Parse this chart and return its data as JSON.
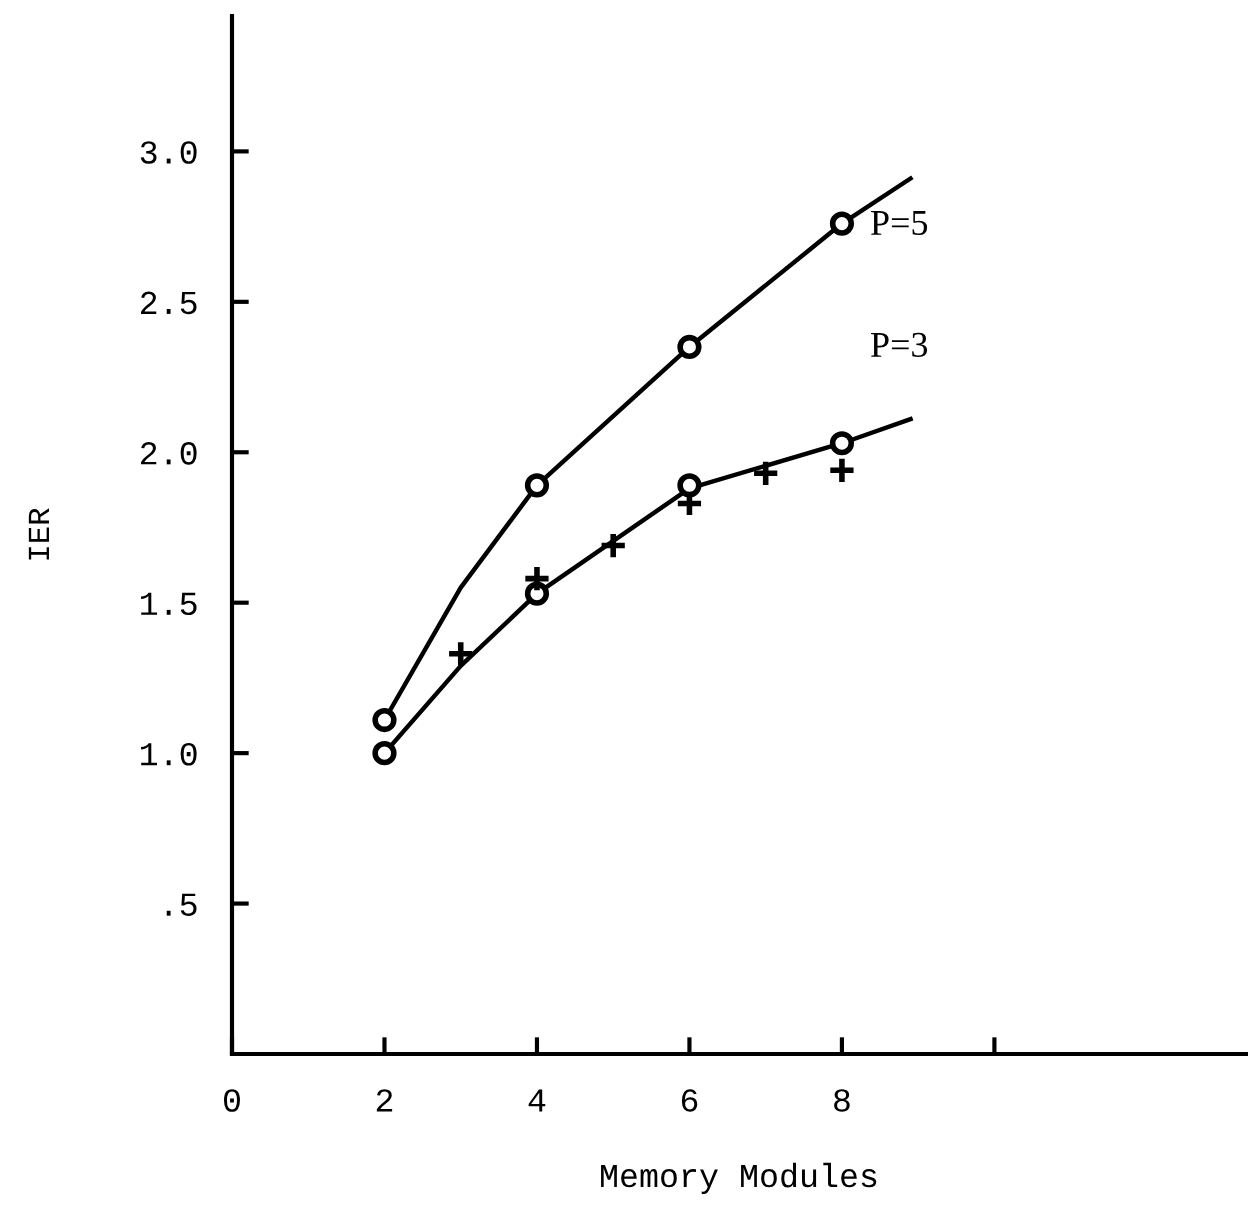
{
  "chart_data": {
    "type": "line",
    "xlabel": "Memory Modules",
    "ylabel": "IER",
    "xlim": [
      0,
      13.3
    ],
    "ylim": [
      0,
      3.45
    ],
    "xticks": [
      0,
      2,
      4,
      6,
      8,
      {
        "value": 10,
        "label": null
      }
    ],
    "yticks": [
      {
        "value": 0.5,
        "label": ".5"
      },
      {
        "value": 1,
        "label": "1.0"
      },
      1.5,
      {
        "value": 2,
        "label": "2.0"
      },
      2.5,
      {
        "value": 3,
        "label": "3.0"
      }
    ],
    "grid": false,
    "series": [
      {
        "color": "#000000",
        "marker": "none",
        "x": [
          2,
          3,
          4,
          6,
          8,
          8.9
        ],
        "values": [
          1.11,
          1.55,
          1.89,
          2.35,
          2.76,
          2.91
        ]
      },
      {
        "color": "#000000",
        "marker": "none",
        "x": [
          2,
          3,
          4,
          6,
          8,
          8.9
        ],
        "values": [
          1.0,
          1.29,
          1.53,
          1.88,
          2.03,
          2.11
        ]
      },
      {
        "type": "scatter",
        "color": "#000000",
        "marker": "circle",
        "x": [
          2,
          4,
          6,
          8
        ],
        "values": [
          1.11,
          1.89,
          2.35,
          2.76
        ]
      },
      {
        "type": "scatter",
        "color": "#000000",
        "marker": "circle",
        "x": [
          2,
          4,
          6,
          8
        ],
        "values": [
          1.0,
          1.53,
          1.89,
          2.03
        ]
      },
      {
        "type": "scatter",
        "color": "#000000",
        "marker": "cross",
        "x": [
          3,
          4,
          5,
          6,
          7,
          8
        ],
        "values": [
          1.33,
          1.58,
          1.69,
          1.83,
          1.93,
          1.94
        ]
      }
    ],
    "annotations": [
      "P=5",
      "P=3"
    ]
  }
}
